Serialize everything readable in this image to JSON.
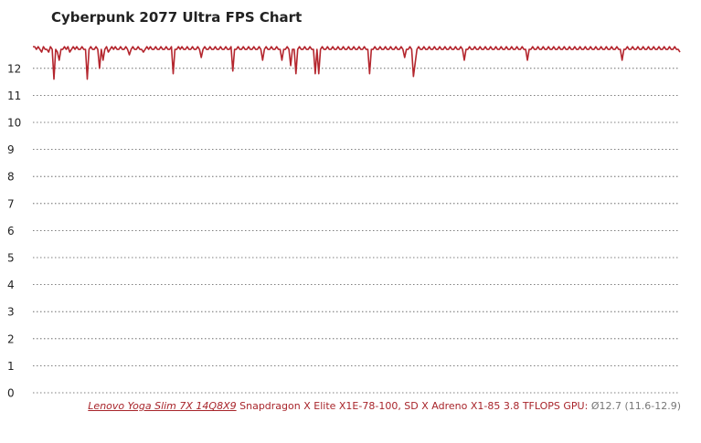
{
  "chart_data": {
    "type": "line",
    "title": "Cyberpunk 2077 Ultra FPS Chart",
    "xlabel": "",
    "ylabel": "",
    "ylim": [
      0,
      13
    ],
    "yticks": [
      0,
      1,
      2,
      3,
      4,
      5,
      6,
      7,
      8,
      9,
      10,
      11,
      12
    ],
    "grid": true,
    "grid_style": "dotted",
    "legend_position": "bottom-right",
    "series": [
      {
        "name": "Lenovo Yoga Slim 7X 14Q8X9",
        "spec": "Snapdragon X Elite X1E-78-100, SD X Adreno X1-85 3.8 TFLOPS GPU:",
        "stats": "Ø12.7 (11.6-12.9)",
        "color": "#b4262e",
        "values": [
          12.8,
          12.8,
          12.7,
          12.8,
          12.7,
          12.6,
          12.8,
          12.7,
          12.7,
          12.6,
          12.8,
          12.7,
          11.6,
          12.7,
          12.6,
          12.3,
          12.7,
          12.7,
          12.8,
          12.7,
          12.8,
          12.6,
          12.7,
          12.8,
          12.7,
          12.8,
          12.7,
          12.7,
          12.8,
          12.7,
          12.7,
          11.6,
          12.7,
          12.8,
          12.7,
          12.7,
          12.8,
          12.7,
          12.0,
          12.7,
          12.3,
          12.7,
          12.8,
          12.6,
          12.7,
          12.8,
          12.7,
          12.8,
          12.7,
          12.7,
          12.8,
          12.7,
          12.7,
          12.8,
          12.7,
          12.5,
          12.7,
          12.8,
          12.7,
          12.7,
          12.8,
          12.7,
          12.7,
          12.6,
          12.7,
          12.8,
          12.7,
          12.8,
          12.7,
          12.7,
          12.8,
          12.7,
          12.7,
          12.8,
          12.7,
          12.7,
          12.8,
          12.7,
          12.7,
          12.8,
          11.8,
          12.7,
          12.7,
          12.8,
          12.7,
          12.8,
          12.7,
          12.7,
          12.8,
          12.7,
          12.7,
          12.8,
          12.7,
          12.7,
          12.8,
          12.7,
          12.4,
          12.7,
          12.8,
          12.7,
          12.7,
          12.8,
          12.7,
          12.7,
          12.8,
          12.7,
          12.7,
          12.8,
          12.7,
          12.7,
          12.8,
          12.7,
          12.7,
          12.8,
          11.9,
          12.7,
          12.7,
          12.8,
          12.7,
          12.7,
          12.8,
          12.7,
          12.7,
          12.8,
          12.7,
          12.7,
          12.8,
          12.7,
          12.7,
          12.8,
          12.7,
          12.3,
          12.7,
          12.8,
          12.7,
          12.7,
          12.8,
          12.7,
          12.7,
          12.8,
          12.7,
          12.7,
          12.3,
          12.7,
          12.7,
          12.8,
          12.7,
          12.1,
          12.7,
          12.7,
          11.8,
          12.7,
          12.8,
          12.7,
          12.7,
          12.8,
          12.7,
          12.7,
          12.8,
          12.7,
          12.7,
          11.8,
          12.7,
          11.8,
          12.7,
          12.8,
          12.7,
          12.7,
          12.8,
          12.7,
          12.7,
          12.8,
          12.7,
          12.7,
          12.8,
          12.7,
          12.7,
          12.8,
          12.7,
          12.7,
          12.8,
          12.7,
          12.7,
          12.8,
          12.7,
          12.7,
          12.8,
          12.7,
          12.7,
          12.8,
          12.7,
          12.7,
          11.8,
          12.7,
          12.7,
          12.8,
          12.7,
          12.7,
          12.8,
          12.7,
          12.7,
          12.8,
          12.7,
          12.7,
          12.8,
          12.7,
          12.7,
          12.8,
          12.7,
          12.7,
          12.8,
          12.7,
          12.4,
          12.7,
          12.7,
          12.8,
          12.7,
          11.7,
          12.2,
          12.7,
          12.8,
          12.7,
          12.7,
          12.8,
          12.7,
          12.7,
          12.8,
          12.7,
          12.7,
          12.8,
          12.7,
          12.7,
          12.8,
          12.7,
          12.7,
          12.8,
          12.7,
          12.7,
          12.8,
          12.7,
          12.7,
          12.8,
          12.7,
          12.7,
          12.8,
          12.7,
          12.3,
          12.7,
          12.7,
          12.8,
          12.7,
          12.7,
          12.8,
          12.7,
          12.7,
          12.8,
          12.7,
          12.7,
          12.8,
          12.7,
          12.7,
          12.8,
          12.7,
          12.7,
          12.8,
          12.7,
          12.7,
          12.8,
          12.7,
          12.7,
          12.8,
          12.7,
          12.7,
          12.8,
          12.7,
          12.7,
          12.8,
          12.7,
          12.7,
          12.8,
          12.7,
          12.7,
          12.3,
          12.7,
          12.7,
          12.8,
          12.7,
          12.7,
          12.8,
          12.7,
          12.7,
          12.8,
          12.7,
          12.7,
          12.8,
          12.7,
          12.7,
          12.8,
          12.7,
          12.7,
          12.8,
          12.7,
          12.7,
          12.8,
          12.7,
          12.7,
          12.8,
          12.7,
          12.7,
          12.8,
          12.7,
          12.7,
          12.8,
          12.7,
          12.7,
          12.8,
          12.7,
          12.7,
          12.8,
          12.7,
          12.7,
          12.8,
          12.7,
          12.7,
          12.8,
          12.7,
          12.7,
          12.8,
          12.7,
          12.7,
          12.8,
          12.7,
          12.7,
          12.8,
          12.7,
          12.7,
          12.3,
          12.7,
          12.7,
          12.8,
          12.7,
          12.7,
          12.8,
          12.7,
          12.7,
          12.8,
          12.7,
          12.7,
          12.8,
          12.7,
          12.7,
          12.8,
          12.7,
          12.7,
          12.8,
          12.7,
          12.7,
          12.8,
          12.7,
          12.7,
          12.8,
          12.7,
          12.7,
          12.8,
          12.7,
          12.7,
          12.8,
          12.7,
          12.7,
          12.6
        ]
      }
    ]
  }
}
